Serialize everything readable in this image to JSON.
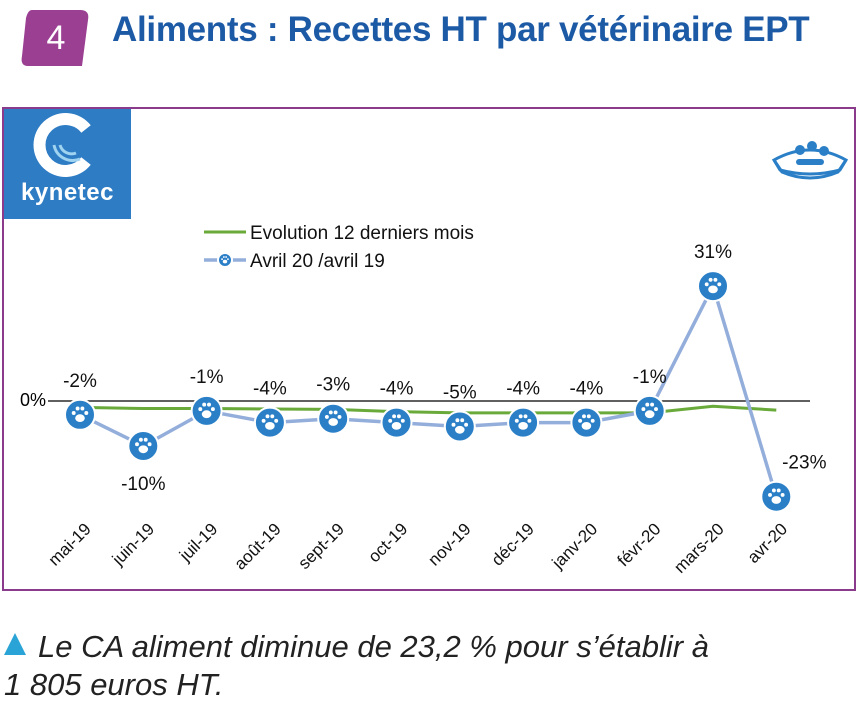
{
  "header": {
    "badge_number": "4",
    "title": "Aliments : Recettes HT par vétérinaire EPT"
  },
  "logo": {
    "brand": "kynetec"
  },
  "decor": {
    "bowl_icon": "pet-food-bowl-icon",
    "marker_icon": "paw-icon"
  },
  "colors": {
    "title": "#1d5aa6",
    "frame": "#8b3b8c",
    "badge": "#9b3f93",
    "logo_bg": "#2d7cc4",
    "line_12m": "#6aaa3a",
    "line_month": "#94aedb",
    "marker": "#2a7fc7",
    "caption_triangle": "#2aa3d6"
  },
  "chart_data": {
    "type": "line",
    "categories": [
      "mai-19",
      "juin-19",
      "juil-19",
      "août-19",
      "sept-19",
      "oct-19",
      "nov-19",
      "déc-19",
      "janv-20",
      "févr-20",
      "mars-20",
      "avr-20"
    ],
    "zero_label": "0%",
    "ylim": [
      -35,
      40
    ],
    "legend_placement": "top-left",
    "series": [
      {
        "name": "Evolution 12 derniers mois",
        "values": [
          -0.1,
          -0.4,
          -0.4,
          -0.5,
          -0.6,
          -1.2,
          -1.5,
          -1.5,
          -1.5,
          -1.5,
          0.2,
          -0.8
        ]
      },
      {
        "name": "Avril 20 /avril 19",
        "values": [
          -2,
          -10,
          -1,
          -4,
          -3,
          -4,
          -5,
          -4,
          -4,
          -1,
          31,
          -23
        ],
        "labels": [
          "-2%",
          "-10%",
          "-1%",
          "-4%",
          "-3%",
          "-4%",
          "-5%",
          "-4%",
          "-4%",
          "-1%",
          "31%",
          "-23%"
        ]
      }
    ]
  },
  "caption": {
    "line1": "Le CA aliment diminue de 23,2 % pour s’établir à",
    "line2": "1 805 euros HT."
  }
}
